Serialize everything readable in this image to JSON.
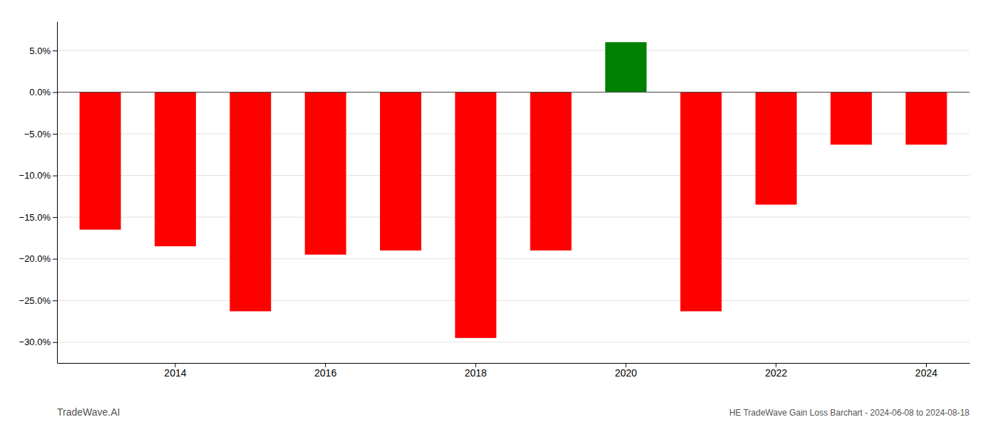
{
  "chart_data": {
    "type": "bar",
    "title": "HE TradeWave Gain Loss Barchart - 2024-06-08 to 2024-08-18",
    "subtitle": "TradeWave.AI",
    "categories": [
      null,
      "2014",
      null,
      "2016",
      null,
      "2018",
      null,
      "2020",
      null,
      "2022",
      null,
      "2024"
    ],
    "values": [
      -16.5,
      -18.5,
      -26.3,
      -19.5,
      -19.0,
      -29.5,
      -19.0,
      6.0,
      -26.3,
      -13.5,
      -6.3,
      -6.3
    ],
    "colors": [
      "#ff0000",
      "#ff0000",
      "#ff0000",
      "#ff0000",
      "#ff0000",
      "#ff0000",
      "#ff0000",
      "#008000",
      "#ff0000",
      "#ff0000",
      "#ff0000",
      "#ff0000"
    ],
    "ylim": [
      -32.5,
      8.5
    ],
    "yticks": [
      {
        "value": -30,
        "label": "−30.0%"
      },
      {
        "value": -25,
        "label": "−25.0%"
      },
      {
        "value": -20,
        "label": "−20.0%"
      },
      {
        "value": -15,
        "label": "−15.0%"
      },
      {
        "value": -10,
        "label": "−10.0%"
      },
      {
        "value": -5,
        "label": "−5.0%"
      },
      {
        "value": 0,
        "label": "0.0%"
      },
      {
        "value": 5,
        "label": "5.0%"
      }
    ],
    "grid": true
  }
}
